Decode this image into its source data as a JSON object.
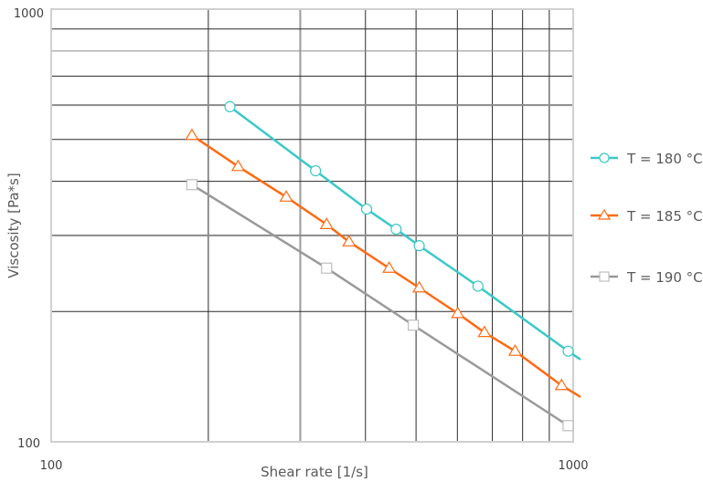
{
  "chart_data": {
    "type": "line",
    "title": "",
    "xlabel": "Shear rate [1/s]",
    "ylabel": "Viscosity [Pa*s]",
    "xscale": "log",
    "yscale": "log",
    "xlim": [
      100,
      1000
    ],
    "ylim": [
      100,
      1000
    ],
    "x_tick_labels": [
      "100",
      "1000"
    ],
    "y_tick_labels": [
      "100",
      "1000"
    ],
    "grid": true,
    "legend_position": "right",
    "series": [
      {
        "name": "T = 180 °C",
        "legend_label": "T = 180",
        "unit": "°C",
        "color": "#3CC8C8",
        "marker": "circle",
        "x": [
          220,
          321,
          402,
          458,
          507,
          657,
          978
        ],
        "y": [
          595,
          423,
          345,
          310,
          284,
          229,
          162
        ],
        "line_end": [
          1000,
          155
        ]
      },
      {
        "name": "T = 185 °C",
        "legend_label": "T = 185",
        "unit": "°C",
        "color": "#FF6A13",
        "marker": "triangle",
        "x": [
          186,
          228,
          282,
          337,
          372,
          444,
          507,
          601,
          676,
          774,
          950
        ],
        "y": [
          511,
          433,
          368,
          318,
          290,
          252,
          227,
          198,
          179,
          162,
          135
        ],
        "line_end": [
          1000,
          127
        ]
      },
      {
        "name": "T = 190 °C",
        "legend_label": "T = 190",
        "unit": "°C",
        "color": "#999999",
        "marker": "square",
        "x": [
          186,
          337,
          494,
          978
        ],
        "y": [
          393,
          252,
          186,
          109
        ],
        "line_end": null
      }
    ],
    "minor_gridlines_x": [
      200,
      300,
      400,
      500,
      600,
      700,
      800,
      900
    ],
    "minor_gridlines_y": [
      200,
      300,
      400,
      500,
      600,
      700,
      800,
      900
    ]
  }
}
